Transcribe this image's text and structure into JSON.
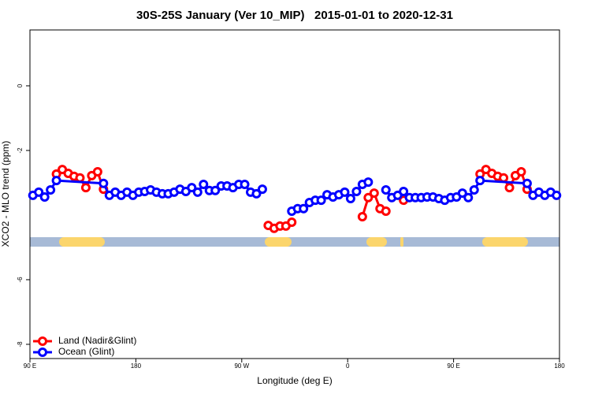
{
  "chart_data": {
    "type": "line",
    "title": "30S-25S January (Ver 10_MIP)   2015-01-01 to 2020-12-31",
    "x_label": "Longitude (deg E)",
    "y_label": "XCO2 - MLO trend (ppm)",
    "xlim": [
      90,
      540
    ],
    "ylim": [
      -8.44,
      1.73
    ],
    "xticks": [
      {
        "value": 90,
        "label": "90 E"
      },
      180,
      {
        "value": 270,
        "label": "90 W"
      },
      0,
      {
        "value": 450,
        "label": "90 E"
      },
      180
    ],
    "yticks": [
      0,
      -2,
      -6,
      -8
    ],
    "legend": "bottomleft",
    "series": [
      {
        "name": "Land (Nadir&Glint)",
        "color": "#ff0000",
        "x": [
          112.5,
          117.5,
          122.5,
          127.5,
          132.5,
          137.5,
          142.5,
          147.5,
          152.5,
          157.5,
          292.5,
          297.5,
          302.5,
          307.5,
          312.5,
          317.5,
          372.5,
          377.5,
          382.5,
          387.5,
          392.5,
          397.5,
          407.5,
          412.5,
          472.5,
          477.5,
          482.5,
          487.5,
          492.5,
          497.5,
          502.5,
          507.5,
          512.5
        ],
        "values": [
          -2.73,
          -2.59,
          -2.71,
          -2.8,
          -2.85,
          -3.15,
          -2.78,
          -2.66,
          -3.2,
          null,
          -4.32,
          -4.41,
          -4.34,
          -4.34,
          -4.22,
          null,
          -4.05,
          -3.46,
          -3.32,
          -3.8,
          -3.88,
          null,
          -3.54,
          null,
          -2.73,
          -2.59,
          -2.71,
          -2.8,
          -2.85,
          -3.15,
          -2.78,
          -2.66,
          -3.2
        ]
      },
      {
        "name": "Ocean (Glint)",
        "color": "#0000ff",
        "x": [
          92.5,
          97.5,
          102.5,
          107.5,
          112.5,
          152.5,
          157.5,
          162.5,
          167.5,
          172.5,
          177.5,
          182.5,
          187.5,
          192.5,
          197.5,
          202.5,
          207.5,
          212.5,
          217.5,
          222.5,
          227.5,
          232.5,
          237.5,
          242.5,
          247.5,
          252.5,
          257.5,
          262.5,
          267.5,
          272.5,
          277.5,
          282.5,
          287.5,
          292.5,
          312.5,
          317.5,
          322.5,
          327.5,
          332.5,
          337.5,
          342.5,
          347.5,
          352.5,
          357.5,
          362.5,
          367.5,
          372.5,
          377.5,
          382.5,
          392.5,
          397.5,
          402.5,
          407.5,
          412.5,
          417.5,
          422.5,
          427.5,
          432.5,
          437.5,
          442.5,
          447.5,
          452.5,
          457.5,
          462.5,
          467.5,
          472.5,
          512.5,
          517.5,
          522.5,
          527.5,
          532.5,
          537.5
        ],
        "values": [
          -3.39,
          -3.29,
          -3.44,
          -3.22,
          -2.93,
          -3.02,
          -3.39,
          -3.29,
          -3.39,
          -3.29,
          -3.39,
          -3.29,
          -3.27,
          -3.22,
          -3.29,
          -3.34,
          -3.34,
          -3.29,
          -3.2,
          -3.27,
          -3.15,
          -3.29,
          -3.05,
          -3.24,
          -3.24,
          -3.1,
          -3.1,
          -3.15,
          -3.05,
          -3.05,
          -3.29,
          -3.34,
          -3.2,
          null,
          -3.88,
          -3.8,
          -3.8,
          -3.61,
          -3.54,
          -3.54,
          -3.37,
          -3.44,
          -3.37,
          -3.29,
          -3.49,
          -3.27,
          -3.05,
          -2.98,
          null,
          -3.22,
          -3.46,
          -3.39,
          -3.27,
          -3.46,
          -3.46,
          -3.46,
          -3.44,
          -3.44,
          -3.49,
          -3.54,
          -3.46,
          -3.44,
          -3.32,
          -3.46,
          -3.22,
          -2.93,
          -3.02,
          -3.39,
          -3.29,
          -3.39,
          -3.29,
          -3.39
        ]
      }
    ]
  }
}
